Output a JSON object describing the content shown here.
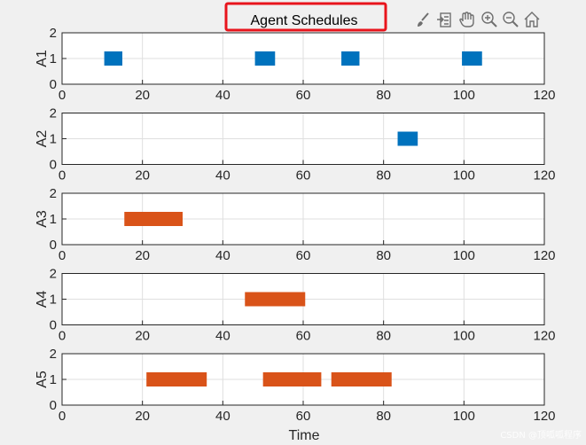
{
  "toolbar": {
    "icons": [
      "brush-icon",
      "export-icon",
      "pan-hand-icon",
      "zoom-in-icon",
      "zoom-out-icon",
      "home-icon"
    ]
  },
  "watermark": "CSDN @顶呱呱程序",
  "colors": {
    "blue": "#0072bd",
    "orange": "#d95319",
    "highlight": "#e8141c",
    "grid": "#dfdfdf",
    "axis": "#262626"
  },
  "chart_data": {
    "type": "bar",
    "title": "Agent Schedules",
    "xlabel": "Time",
    "xlim": [
      0,
      120
    ],
    "ylim": [
      0,
      2
    ],
    "xticks": [
      0,
      20,
      40,
      60,
      80,
      100,
      120
    ],
    "yticks": [
      0,
      1,
      2
    ],
    "grid": true,
    "subplots": [
      {
        "ylabel": "A1",
        "color": "blue",
        "tasks": [
          {
            "start": 10.5,
            "end": 15
          },
          {
            "start": 48,
            "end": 53
          },
          {
            "start": 69.5,
            "end": 74
          },
          {
            "start": 99.5,
            "end": 104.5
          }
        ]
      },
      {
        "ylabel": "A2",
        "color": "blue",
        "tasks": [
          {
            "start": 83.5,
            "end": 88.5
          }
        ]
      },
      {
        "ylabel": "A3",
        "color": "orange",
        "tasks": [
          {
            "start": 15.5,
            "end": 30
          }
        ]
      },
      {
        "ylabel": "A4",
        "color": "orange",
        "tasks": [
          {
            "start": 45.5,
            "end": 60.5
          }
        ]
      },
      {
        "ylabel": "A5",
        "color": "orange",
        "tasks": [
          {
            "start": 21,
            "end": 36
          },
          {
            "start": 50,
            "end": 64.5
          },
          {
            "start": 67,
            "end": 82
          }
        ]
      }
    ]
  }
}
